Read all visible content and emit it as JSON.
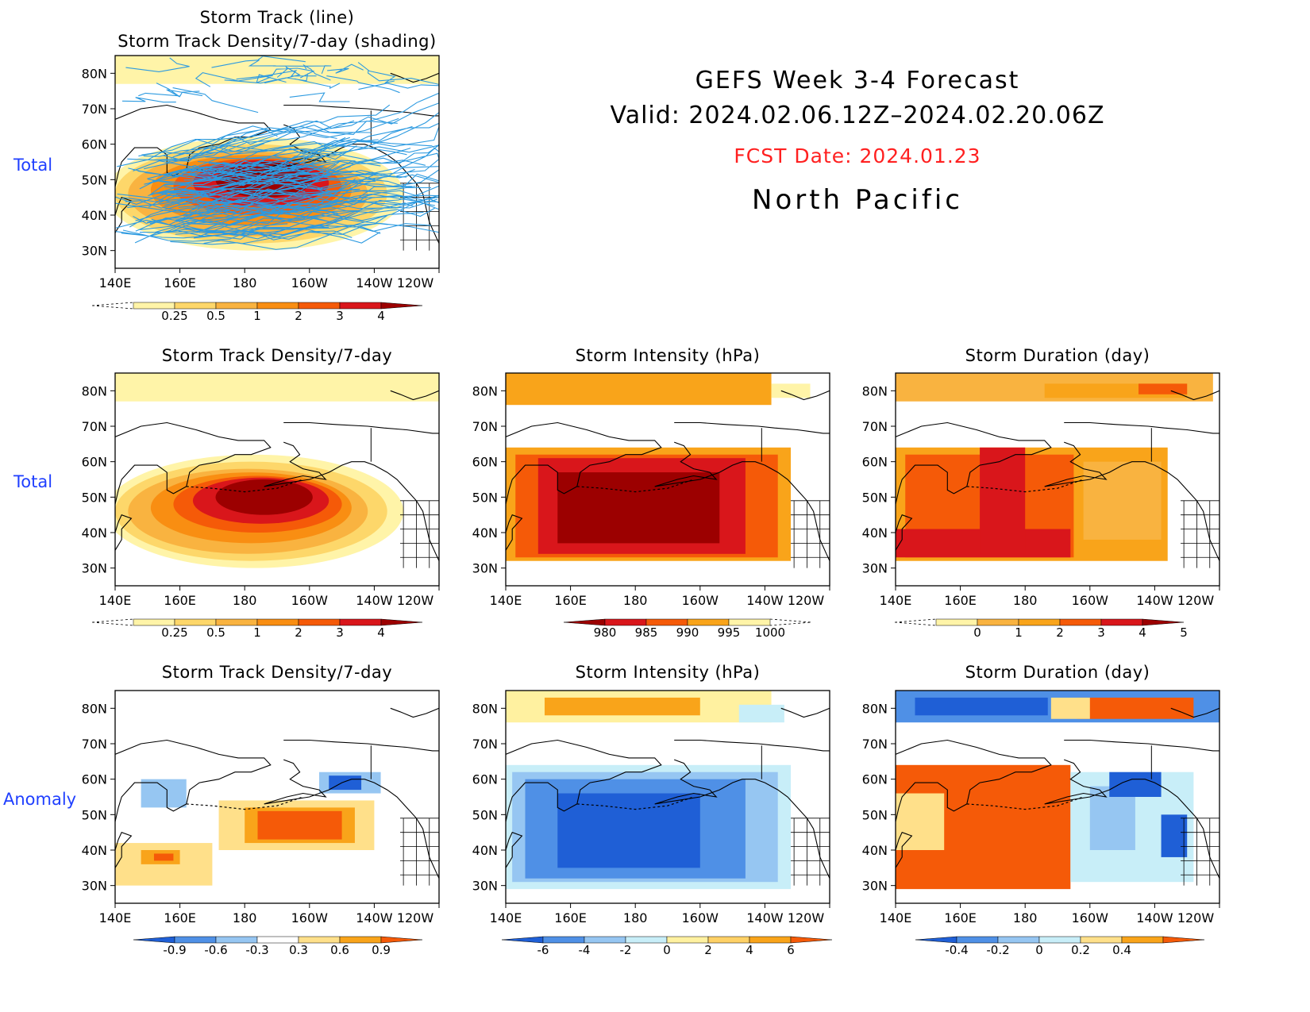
{
  "header": {
    "line1": "GEFS Week 3-4 Forecast",
    "line2": "Valid: 2024.02.06.12Z–2024.02.20.06Z",
    "fcst": "FCST Date: 2024.01.23",
    "region": "North Pacific",
    "fcst_color": "#ff2020"
  },
  "row_labels": {
    "total_a": "Total",
    "total_b": "Total",
    "anomaly": "Anomaly"
  },
  "axes": {
    "lat_labels": [
      "80N",
      "70N",
      "60N",
      "50N",
      "40N",
      "30N"
    ],
    "lon_labels": [
      "140E",
      "160E",
      "180",
      "160W",
      "140W",
      "120W"
    ]
  },
  "panels": {
    "p1": {
      "title1": "Storm Track (line)",
      "title2": "Storm Track Density/7-day (shading)"
    },
    "p2": {
      "title": "Storm Track Density/7-day"
    },
    "p3": {
      "title": "Storm Intensity (hPa)"
    },
    "p4": {
      "title": "Storm Duration (day)"
    },
    "p5": {
      "title": "Storm Track Density/7-day"
    },
    "p6": {
      "title": "Storm Intensity (hPa)"
    },
    "p7": {
      "title": "Storm Duration (day)"
    }
  },
  "colorbars": {
    "density": {
      "labels": [
        "0.25",
        "0.5",
        "1",
        "2",
        "3",
        "4"
      ],
      "colors": [
        "#fff4a8",
        "#fdd76a",
        "#f9b340",
        "#f98e12",
        "#f55a08",
        "#d9161b",
        "#9c0000"
      ]
    },
    "intensity": {
      "labels": [
        "980",
        "985",
        "990",
        "995",
        "1000"
      ],
      "colors": [
        "#9c0000",
        "#d9161b",
        "#f55a08",
        "#f9a41a",
        "#fff4a8"
      ]
    },
    "duration": {
      "labels": [
        "0",
        "1",
        "2",
        "3",
        "4",
        "5"
      ],
      "colors": [
        "#fff4a8",
        "#f9b340",
        "#f9a41a",
        "#f55a08",
        "#d9161b",
        "#9c0000"
      ]
    },
    "density_anom": {
      "labels": [
        "-0.9",
        "-0.6",
        "-0.3",
        "0.3",
        "0.6",
        "0.9"
      ],
      "colors": [
        "#1f5fd6",
        "#4f90e6",
        "#96c6f2",
        "#ffffff",
        "#ffe08a",
        "#f9a41a",
        "#f55a08"
      ]
    },
    "intensity_anom": {
      "labels": [
        "-6",
        "-4",
        "-2",
        "0",
        "2",
        "4",
        "6"
      ],
      "colors": [
        "#1f5fd6",
        "#4f90e6",
        "#96c6f2",
        "#c8eef8",
        "#fff1a0",
        "#ffd166",
        "#f9a41a",
        "#f55a08"
      ]
    },
    "duration_anom": {
      "labels": [
        "-0.4",
        "-0.2",
        "0",
        "0.2",
        "0.4"
      ],
      "colors": [
        "#1f5fd6",
        "#4f90e6",
        "#96c6f2",
        "#c8eef8",
        "#ffe08a",
        "#f9a41a",
        "#f55a08"
      ]
    }
  }
}
